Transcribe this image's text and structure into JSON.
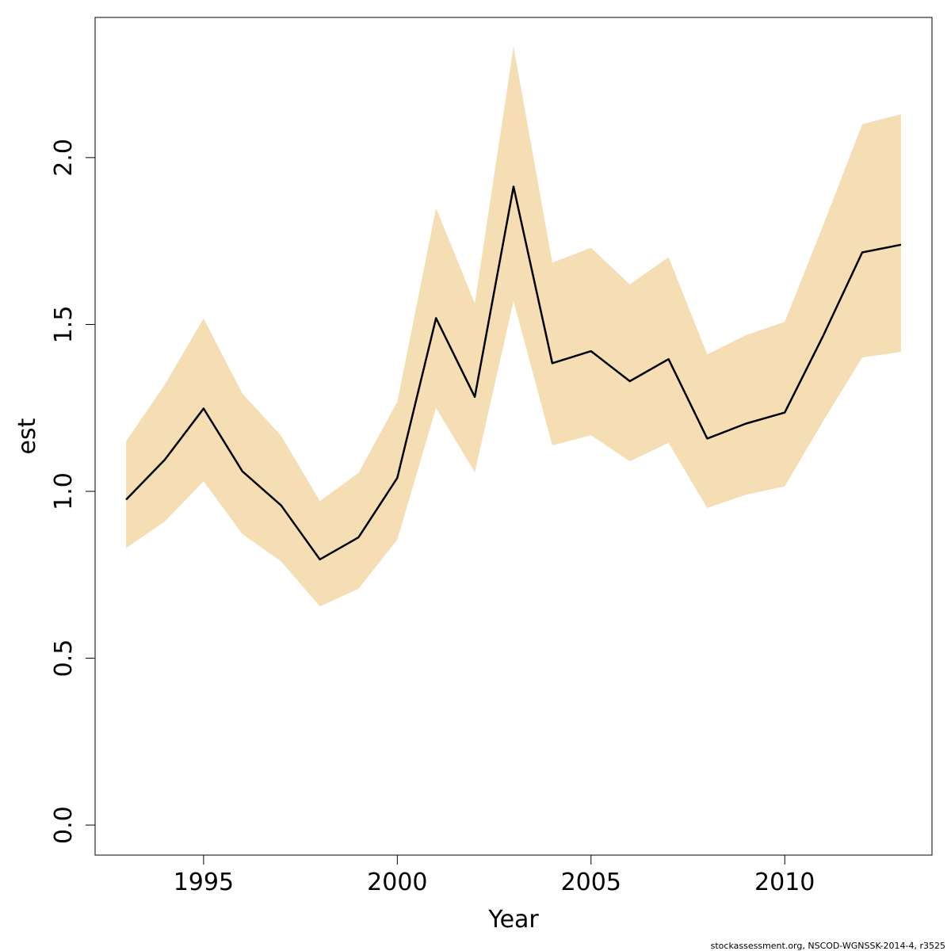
{
  "chart_data": {
    "type": "line",
    "title": "",
    "xlabel": "Year",
    "ylabel": "est",
    "xlim": [
      1992.2,
      2013.8
    ],
    "ylim": [
      -0.09,
      2.42
    ],
    "x_ticks": [
      1995,
      2000,
      2005,
      2010
    ],
    "x_tick_labels": [
      "1995",
      "2000",
      "2005",
      "2010"
    ],
    "y_ticks": [
      0.0,
      0.5,
      1.0,
      1.5,
      2.0
    ],
    "y_tick_labels": [
      "0.0",
      "0.5",
      "1.0",
      "1.5",
      "2.0"
    ],
    "grid": false,
    "legend": "none",
    "band_color": "#f5deb3",
    "line_color": "#000000",
    "x": [
      1993,
      1994,
      1995,
      1996,
      1997,
      1998,
      1999,
      2000,
      2001,
      2002,
      2003,
      2004,
      2005,
      2006,
      2007,
      2008,
      2009,
      2010,
      2011,
      2012,
      2013
    ],
    "series": [
      {
        "values": [
          0.975,
          1.095,
          1.248,
          1.06,
          0.958,
          0.796,
          0.862,
          1.04,
          1.519,
          1.283,
          1.913,
          1.384,
          1.42,
          1.33,
          1.396,
          1.158,
          1.203,
          1.236,
          1.468,
          1.716,
          1.739
        ]
      }
    ],
    "band": {
      "lower": [
        0.83,
        0.91,
        1.03,
        0.872,
        0.79,
        0.655,
        0.708,
        0.855,
        1.25,
        1.057,
        1.57,
        1.138,
        1.168,
        1.09,
        1.145,
        0.95,
        0.99,
        1.015,
        1.212,
        1.401,
        1.418
      ],
      "upper": [
        1.15,
        1.32,
        1.518,
        1.293,
        1.167,
        0.971,
        1.055,
        1.268,
        1.849,
        1.563,
        2.333,
        1.685,
        1.73,
        1.62,
        1.702,
        1.41,
        1.468,
        1.508,
        1.8,
        2.1,
        2.13
      ]
    }
  },
  "footnote": "stockassessment.org, NSCOD-WGNSSK-2014-4, r3525"
}
